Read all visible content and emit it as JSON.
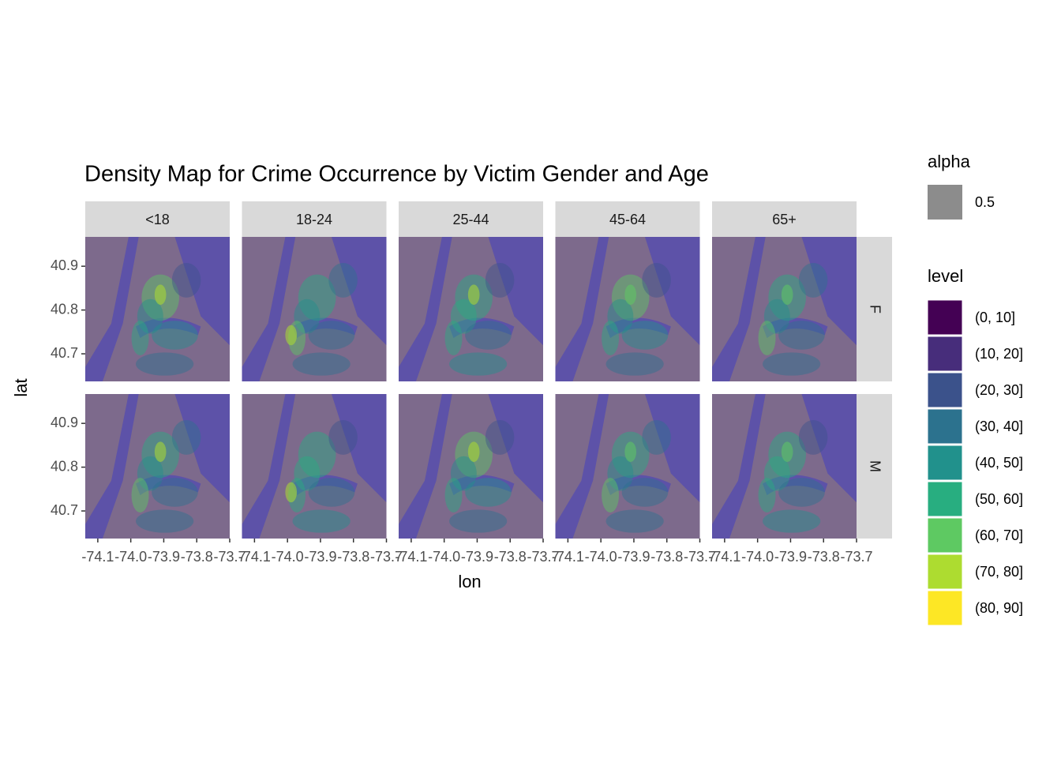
{
  "chart_data": {
    "type": "map",
    "title": "Density Map for Crime Occurrence by Victim Gender and Age",
    "x_label": "lon",
    "y_label": "lat",
    "facet_columns": [
      "<18",
      "18-24",
      "25-44",
      "45-64",
      "65+"
    ],
    "facet_rows": [
      "F",
      "M"
    ],
    "xlim": [
      -74.138,
      -73.7
    ],
    "xticks": [
      {
        "value": -74.1,
        "label": "-74.1"
      },
      {
        "value": -74,
        "label": "-74.0"
      },
      {
        "value": -73.9,
        "label": "-73.9"
      },
      {
        "value": -73.8,
        "label": "-73.8"
      },
      -73.7
    ],
    "ylim": [
      40.637,
      40.967
    ],
    "yticks": [
      40.7,
      40.8,
      40.9
    ],
    "alpha_legend": {
      "title": "alpha",
      "value": 0.5
    },
    "level_legend": {
      "title": "level",
      "categories": [
        "(0, 10]",
        "(10, 20]",
        "(20, 30]",
        "(30, 40]",
        "(40, 50]",
        "(50, 60]",
        "(60, 70]",
        "(70, 80]",
        "(80, 90]"
      ],
      "colors": [
        "#440154",
        "#472d7b",
        "#3b528b",
        "#2c728e",
        "#21918c",
        "#28ae80",
        "#5ec962",
        "#addc30",
        "#fde725"
      ]
    }
  }
}
